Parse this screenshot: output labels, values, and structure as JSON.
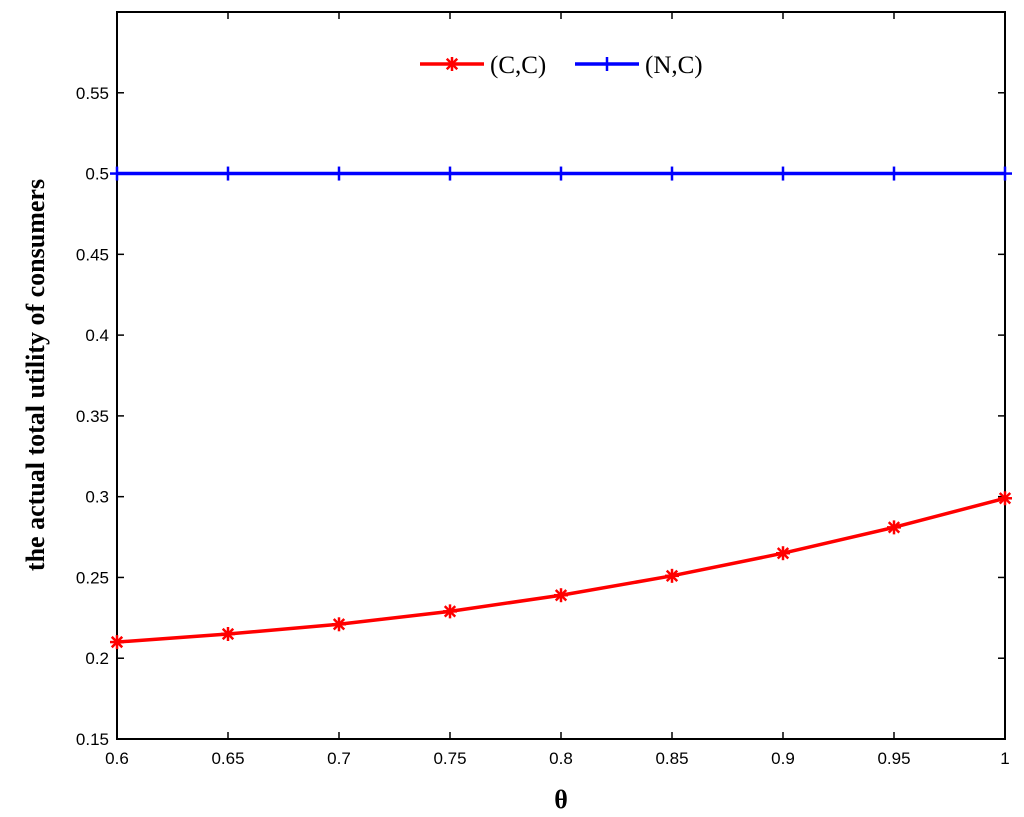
{
  "chart_data": {
    "type": "line",
    "xlabel": "θ",
    "ylabel": "the actual total utility of consumers",
    "xlim": [
      0.6,
      1.0
    ],
    "ylim": [
      0.15,
      0.6
    ],
    "xticks": [
      "0.6",
      "0.65",
      "0.7",
      "0.75",
      "0.8",
      "0.85",
      "0.9",
      "0.95",
      "1"
    ],
    "yticks": [
      "0.15",
      "0.2",
      "0.25",
      "0.3",
      "0.35",
      "0.4",
      "0.45",
      "0.5",
      "0.55"
    ],
    "grid": false,
    "legend_position": "top-center",
    "x": [
      0.6,
      0.65,
      0.7,
      0.75,
      0.8,
      0.85,
      0.9,
      0.95,
      1.0
    ],
    "series": [
      {
        "name": "(C,C)",
        "color": "#ff0000",
        "marker": "asterisk",
        "values": [
          0.21,
          0.215,
          0.221,
          0.229,
          0.239,
          0.251,
          0.265,
          0.281,
          0.299
        ]
      },
      {
        "name": "(N,C)",
        "color": "#0000ff",
        "marker": "plus",
        "values": [
          0.5,
          0.5,
          0.5,
          0.5,
          0.5,
          0.5,
          0.5,
          0.5,
          0.5
        ]
      }
    ]
  }
}
